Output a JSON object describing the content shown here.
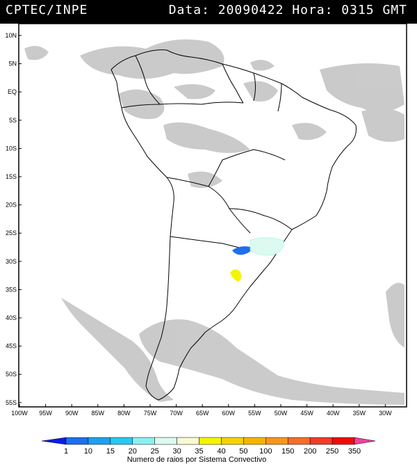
{
  "header": {
    "agency": "CPTEC/INPE",
    "datetime": "Data: 20090422 Hora: 0315 GMT"
  },
  "axes": {
    "lat_labels": [
      "10N",
      "5N",
      "EQ",
      "5S",
      "10S",
      "15S",
      "20S",
      "25S",
      "30S",
      "35S",
      "40S",
      "45S",
      "50S",
      "55S"
    ],
    "lon_labels": [
      "100W",
      "95W",
      "90W",
      "85W",
      "80W",
      "75W",
      "70W",
      "65W",
      "60W",
      "55W",
      "50W",
      "45W",
      "40W",
      "35W",
      "30W"
    ]
  },
  "legend": {
    "title": "Numero de raios por Sistema Convectivo",
    "labels": [
      "1",
      "10",
      "15",
      "20",
      "25",
      "30",
      "35",
      "40",
      "50",
      "100",
      "150",
      "200",
      "250",
      "350"
    ],
    "colors": [
      "#0a1ee6",
      "#1e6ef0",
      "#1ea0f0",
      "#28c8f0",
      "#8cf0f0",
      "#dcfaf0",
      "#fafad2",
      "#f5f500",
      "#f5d200",
      "#f5b400",
      "#f5961e",
      "#f56e28",
      "#f03c28",
      "#f00a0a",
      "#f040a0"
    ]
  },
  "colors": {
    "header_bg": "#000000",
    "cloud_gray": "#c8c8c8",
    "land_outline": "#000000"
  }
}
